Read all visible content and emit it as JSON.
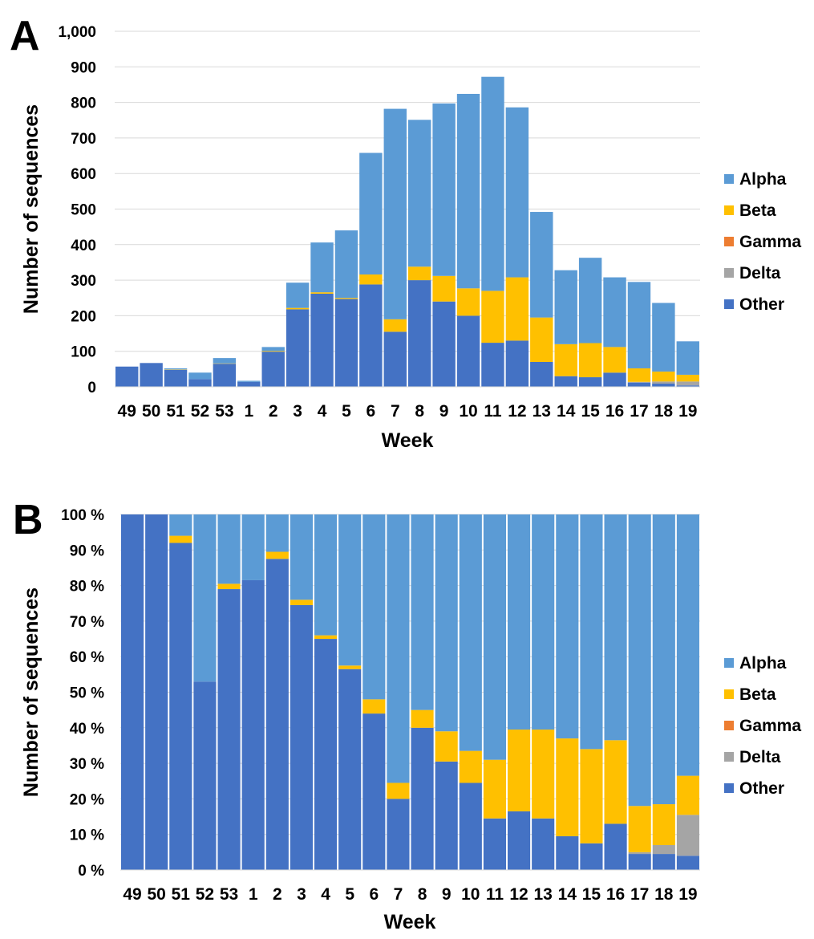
{
  "colors": {
    "Alpha": "#5b9bd5",
    "Beta": "#ffc000",
    "Gamma": "#ed7d31",
    "Delta": "#a5a5a5",
    "Other": "#4472c4",
    "grid": "#d9d9d9"
  },
  "chart_data": [
    {
      "type": "bar",
      "stacked": true,
      "panel_label": "A",
      "title": "",
      "xlabel": "Week",
      "ylabel": "Number of sequences",
      "ylim": [
        0,
        1000
      ],
      "yticks": [
        "0",
        "100",
        "200",
        "300",
        "400",
        "500",
        "600",
        "700",
        "800",
        "900",
        "1,000"
      ],
      "grid": true,
      "legend_position": "right",
      "categories": [
        "49",
        "50",
        "51",
        "52",
        "53",
        "1",
        "2",
        "3",
        "4",
        "5",
        "6",
        "7",
        "8",
        "9",
        "10",
        "11",
        "12",
        "13",
        "14",
        "15",
        "16",
        "17",
        "18",
        "19"
      ],
      "series": [
        {
          "name": "Other",
          "values": [
            57,
            67,
            48,
            22,
            65,
            14,
            99,
            218,
            262,
            247,
            288,
            155,
            300,
            240,
            200,
            124,
            130,
            70,
            30,
            27,
            40,
            12,
            9,
            4
          ]
        },
        {
          "name": "Delta",
          "values": [
            0,
            0,
            0,
            0,
            0,
            0,
            0,
            0,
            0,
            0,
            0,
            0,
            0,
            0,
            0,
            0,
            0,
            0,
            0,
            0,
            0,
            2,
            6,
            11
          ]
        },
        {
          "name": "Gamma",
          "values": [
            0,
            0,
            0,
            0,
            0,
            0,
            0,
            0,
            0,
            0,
            0,
            0,
            0,
            0,
            0,
            0,
            0,
            0,
            0,
            0,
            0,
            0,
            0,
            0
          ]
        },
        {
          "name": "Beta",
          "values": [
            0,
            0,
            1,
            0,
            1,
            0,
            2,
            4,
            4,
            3,
            28,
            35,
            38,
            72,
            77,
            146,
            178,
            125,
            90,
            96,
            72,
            38,
            28,
            19
          ]
        },
        {
          "name": "Alpha",
          "values": [
            0,
            0,
            3,
            18,
            15,
            3,
            11,
            71,
            140,
            190,
            342,
            592,
            413,
            485,
            547,
            602,
            478,
            297,
            208,
            240,
            196,
            243,
            193,
            94
          ]
        }
      ],
      "legend": [
        "Alpha",
        "Beta",
        "Gamma",
        "Delta",
        "Other"
      ]
    },
    {
      "type": "bar",
      "stacked": true,
      "normalized": true,
      "panel_label": "B",
      "title": "",
      "xlabel": "Week",
      "ylabel": "Number of sequences",
      "ylim": [
        0,
        100
      ],
      "yticks": [
        "0 %",
        "10 %",
        "20 %",
        "30 %",
        "40 %",
        "50 %",
        "60 %",
        "70 %",
        "80 %",
        "90 %",
        "100 %"
      ],
      "grid": true,
      "legend_position": "right",
      "categories": [
        "49",
        "50",
        "51",
        "52",
        "53",
        "1",
        "2",
        "3",
        "4",
        "5",
        "6",
        "7",
        "8",
        "9",
        "10",
        "11",
        "12",
        "13",
        "14",
        "15",
        "16",
        "17",
        "18",
        "19"
      ],
      "series": [
        {
          "name": "Other",
          "values": [
            100,
            100,
            92,
            53,
            79,
            81.5,
            87.5,
            74.5,
            65,
            56.5,
            44,
            20,
            40,
            30.5,
            24.5,
            14.5,
            16.5,
            14.5,
            9.5,
            7.5,
            13,
            4.5,
            4.5,
            4
          ]
        },
        {
          "name": "Delta",
          "values": [
            0,
            0,
            0,
            0,
            0,
            0,
            0,
            0,
            0,
            0,
            0,
            0,
            0,
            0,
            0,
            0,
            0,
            0,
            0,
            0,
            0,
            0.5,
            2.5,
            11.5
          ]
        },
        {
          "name": "Gamma",
          "values": [
            0,
            0,
            0,
            0,
            0,
            0,
            0,
            0,
            0,
            0,
            0,
            0,
            0,
            0,
            0,
            0,
            0,
            0,
            0,
            0,
            0,
            0,
            0,
            0
          ]
        },
        {
          "name": "Beta",
          "values": [
            0,
            0,
            2,
            0,
            1.5,
            0,
            2,
            1.5,
            1,
            1,
            4,
            4.5,
            5,
            8.5,
            9,
            16.5,
            23,
            25,
            27.5,
            26.5,
            23.5,
            13,
            11.5,
            11
          ]
        },
        {
          "name": "Alpha",
          "values": [
            0,
            0,
            6,
            47,
            19.5,
            18.5,
            10.5,
            24,
            34,
            42.5,
            52,
            75.5,
            55,
            61,
            66.5,
            69,
            60.5,
            60.5,
            63,
            66,
            63.5,
            82,
            81.5,
            73.5
          ]
        }
      ],
      "legend": [
        "Alpha",
        "Beta",
        "Gamma",
        "Delta",
        "Other"
      ]
    }
  ]
}
